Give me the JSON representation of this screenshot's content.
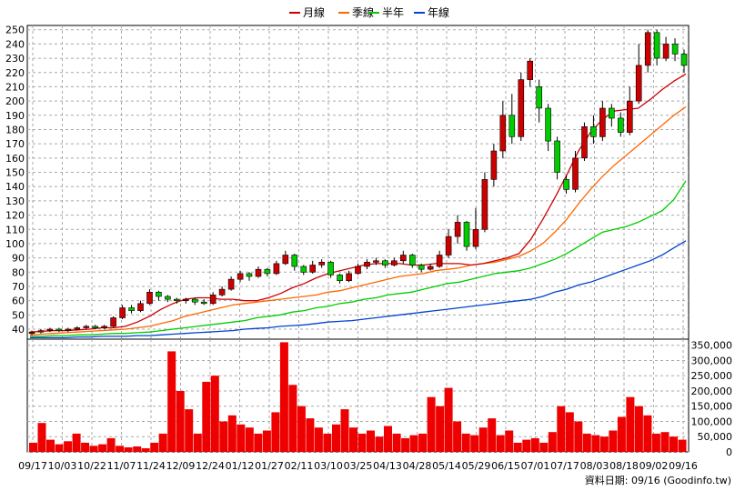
{
  "legend": [
    {
      "label": "月線",
      "color": "#cc0000"
    },
    {
      "label": "季線",
      "color": "#ff6600"
    },
    {
      "label": "半年",
      "color": "#00cc00"
    },
    {
      "label": "年線",
      "color": "#0044cc"
    }
  ],
  "footer": "資料日期: 09/16 (Goodinfo.tw)",
  "chart_data": [
    {
      "type": "candlestick",
      "title": "",
      "x_tick_labels": [
        "09/17",
        "10/03",
        "10/22",
        "11/07",
        "11/24",
        "12/09",
        "12/24",
        "01/12",
        "01/27",
        "02/11",
        "03/10",
        "03/25",
        "04/13",
        "04/28",
        "05/14",
        "05/29",
        "06/15",
        "07/01",
        "07/17",
        "08/03",
        "08/18",
        "09/02",
        "09/16"
      ],
      "y_ticks": [
        40,
        50,
        60,
        70,
        80,
        90,
        100,
        110,
        120,
        130,
        140,
        150,
        160,
        170,
        180,
        190,
        200,
        210,
        220,
        230,
        240,
        250
      ],
      "ylim": [
        33,
        253
      ],
      "grid": true,
      "legend_position": "top-center",
      "up_color": "#cc0000",
      "down_color": "#00cc00",
      "series": [
        {
          "name": "月線",
          "color": "#cc0000",
          "values": [
            38,
            38.5,
            39,
            39,
            39.5,
            40,
            41,
            41,
            42,
            45,
            49,
            54,
            58,
            61,
            62,
            62,
            61,
            61,
            60,
            60,
            62,
            65,
            69,
            72,
            76,
            79,
            81,
            83,
            85,
            86,
            86,
            86,
            85,
            85,
            86,
            86,
            86,
            85,
            86,
            88,
            90,
            93,
            103,
            117,
            132,
            148,
            165,
            178,
            187,
            193,
            194,
            195,
            201,
            208,
            214,
            219
          ]
        },
        {
          "name": "季線",
          "color": "#ff6600",
          "values": [
            36,
            36.5,
            37,
            37.5,
            38,
            38.5,
            39,
            39.5,
            40,
            41,
            42,
            44,
            46,
            49,
            51,
            53,
            55,
            57,
            58,
            59,
            60,
            61,
            62,
            63,
            64,
            66,
            67,
            69,
            71,
            73,
            75,
            77,
            78,
            79,
            81,
            82,
            83,
            85,
            86,
            87,
            89,
            91,
            95,
            100,
            108,
            117,
            128,
            138,
            147,
            155,
            162,
            169,
            176,
            183,
            190,
            196
          ]
        },
        {
          "name": "半年",
          "color": "#00cc00",
          "values": [
            35,
            35,
            35.5,
            35.5,
            36,
            36,
            36.5,
            37,
            37,
            37.5,
            38,
            39,
            40,
            41,
            42,
            43,
            44,
            45,
            46,
            48,
            49,
            50,
            52,
            53,
            55,
            56,
            58,
            59,
            61,
            62,
            64,
            65,
            66,
            68,
            70,
            72,
            73,
            75,
            77,
            79,
            80,
            81,
            83,
            86,
            89,
            93,
            98,
            103,
            108,
            110,
            112,
            115,
            119,
            123,
            131,
            144
          ]
        },
        {
          "name": "年線",
          "color": "#0044cc",
          "values": [
            34,
            34,
            34,
            34,
            34.5,
            34.5,
            35,
            35,
            35,
            35.5,
            35.5,
            36,
            36.5,
            37,
            37.5,
            38,
            38.5,
            39,
            40,
            40.5,
            41,
            42,
            42.5,
            43,
            44,
            45,
            45.5,
            46,
            47,
            48,
            49,
            50,
            51,
            52,
            53,
            54,
            55,
            56,
            57,
            58,
            59,
            60,
            61,
            63,
            66,
            68,
            71,
            73,
            76,
            79,
            82,
            85,
            88,
            92,
            97,
            102
          ]
        }
      ],
      "candles": [
        {
          "o": 37,
          "c": 38,
          "h": 39,
          "l": 36
        },
        {
          "o": 38,
          "c": 39,
          "h": 40,
          "l": 37
        },
        {
          "o": 39,
          "c": 40,
          "h": 41,
          "l": 38
        },
        {
          "o": 40,
          "c": 39,
          "h": 41,
          "l": 38
        },
        {
          "o": 39,
          "c": 40,
          "h": 41,
          "l": 38
        },
        {
          "o": 40,
          "c": 41,
          "h": 42,
          "l": 39
        },
        {
          "o": 41,
          "c": 42,
          "h": 43,
          "l": 40
        },
        {
          "o": 42,
          "c": 41,
          "h": 43,
          "l": 40
        },
        {
          "o": 41,
          "c": 42,
          "h": 43,
          "l": 40
        },
        {
          "o": 42,
          "c": 48,
          "h": 49,
          "l": 41
        },
        {
          "o": 48,
          "c": 55,
          "h": 57,
          "l": 47
        },
        {
          "o": 55,
          "c": 53,
          "h": 57,
          "l": 51
        },
        {
          "o": 53,
          "c": 58,
          "h": 60,
          "l": 52
        },
        {
          "o": 58,
          "c": 66,
          "h": 68,
          "l": 57
        },
        {
          "o": 66,
          "c": 63,
          "h": 67,
          "l": 60
        },
        {
          "o": 63,
          "c": 61,
          "h": 64,
          "l": 59
        },
        {
          "o": 61,
          "c": 60,
          "h": 62,
          "l": 58
        },
        {
          "o": 60,
          "c": 61,
          "h": 62,
          "l": 58
        },
        {
          "o": 61,
          "c": 59,
          "h": 62,
          "l": 57
        },
        {
          "o": 59,
          "c": 58,
          "h": 61,
          "l": 57
        },
        {
          "o": 58,
          "c": 64,
          "h": 66,
          "l": 57
        },
        {
          "o": 64,
          "c": 68,
          "h": 70,
          "l": 63
        },
        {
          "o": 68,
          "c": 75,
          "h": 77,
          "l": 67
        },
        {
          "o": 75,
          "c": 79,
          "h": 81,
          "l": 73
        },
        {
          "o": 79,
          "c": 77,
          "h": 80,
          "l": 74
        },
        {
          "o": 77,
          "c": 82,
          "h": 84,
          "l": 76
        },
        {
          "o": 82,
          "c": 79,
          "h": 83,
          "l": 77
        },
        {
          "o": 79,
          "c": 86,
          "h": 88,
          "l": 78
        },
        {
          "o": 86,
          "c": 92,
          "h": 95,
          "l": 85
        },
        {
          "o": 92,
          "c": 84,
          "h": 93,
          "l": 81
        },
        {
          "o": 84,
          "c": 80,
          "h": 85,
          "l": 78
        },
        {
          "o": 80,
          "c": 85,
          "h": 88,
          "l": 79
        },
        {
          "o": 85,
          "c": 87,
          "h": 89,
          "l": 83
        },
        {
          "o": 87,
          "c": 78,
          "h": 88,
          "l": 76
        },
        {
          "o": 78,
          "c": 74,
          "h": 79,
          "l": 72
        },
        {
          "o": 74,
          "c": 79,
          "h": 81,
          "l": 73
        },
        {
          "o": 79,
          "c": 84,
          "h": 86,
          "l": 78
        },
        {
          "o": 84,
          "c": 87,
          "h": 89,
          "l": 82
        },
        {
          "o": 87,
          "c": 88,
          "h": 90,
          "l": 85
        },
        {
          "o": 88,
          "c": 85,
          "h": 89,
          "l": 83
        },
        {
          "o": 85,
          "c": 88,
          "h": 90,
          "l": 84
        },
        {
          "o": 88,
          "c": 92,
          "h": 95,
          "l": 86
        },
        {
          "o": 92,
          "c": 85,
          "h": 93,
          "l": 83
        },
        {
          "o": 85,
          "c": 82,
          "h": 86,
          "l": 80
        },
        {
          "o": 82,
          "c": 84,
          "h": 86,
          "l": 81
        },
        {
          "o": 84,
          "c": 92,
          "h": 95,
          "l": 83
        },
        {
          "o": 92,
          "c": 105,
          "h": 110,
          "l": 90
        },
        {
          "o": 105,
          "c": 115,
          "h": 120,
          "l": 100
        },
        {
          "o": 115,
          "c": 98,
          "h": 116,
          "l": 95
        },
        {
          "o": 98,
          "c": 110,
          "h": 125,
          "l": 96
        },
        {
          "o": 110,
          "c": 145,
          "h": 150,
          "l": 108
        },
        {
          "o": 145,
          "c": 165,
          "h": 170,
          "l": 140
        },
        {
          "o": 165,
          "c": 190,
          "h": 200,
          "l": 160
        },
        {
          "o": 190,
          "c": 175,
          "h": 205,
          "l": 170
        },
        {
          "o": 175,
          "c": 215,
          "h": 220,
          "l": 172
        },
        {
          "o": 215,
          "c": 228,
          "h": 230,
          "l": 210
        },
        {
          "o": 210,
          "c": 195,
          "h": 215,
          "l": 185
        },
        {
          "o": 195,
          "c": 172,
          "h": 198,
          "l": 165
        },
        {
          "o": 172,
          "c": 150,
          "h": 175,
          "l": 145
        },
        {
          "o": 145,
          "c": 138,
          "h": 148,
          "l": 135
        },
        {
          "o": 138,
          "c": 160,
          "h": 165,
          "l": 136
        },
        {
          "o": 160,
          "c": 182,
          "h": 185,
          "l": 158
        },
        {
          "o": 182,
          "c": 175,
          "h": 190,
          "l": 170
        },
        {
          "o": 175,
          "c": 195,
          "h": 200,
          "l": 172
        },
        {
          "o": 195,
          "c": 188,
          "h": 198,
          "l": 182
        },
        {
          "o": 188,
          "c": 178,
          "h": 192,
          "l": 175
        },
        {
          "o": 178,
          "c": 200,
          "h": 210,
          "l": 176
        },
        {
          "o": 200,
          "c": 225,
          "h": 240,
          "l": 198
        },
        {
          "o": 225,
          "c": 248,
          "h": 250,
          "l": 220
        },
        {
          "o": 248,
          "c": 230,
          "h": 250,
          "l": 225
        },
        {
          "o": 230,
          "c": 240,
          "h": 245,
          "l": 228
        },
        {
          "o": 240,
          "c": 233,
          "h": 244,
          "l": 228
        },
        {
          "o": 233,
          "c": 225,
          "h": 236,
          "l": 220
        }
      ]
    },
    {
      "type": "bar",
      "title": "",
      "y_ticks": [
        0,
        50000,
        100000,
        150000,
        200000,
        250000,
        300000,
        350000
      ],
      "y_tick_labels": [
        "0",
        "50,000",
        "100,000",
        "150,000",
        "200,000",
        "250,000",
        "300,000",
        "350,000"
      ],
      "ylim": [
        0,
        370000
      ],
      "color": "#ee0000",
      "values": [
        30000,
        95000,
        40000,
        25000,
        35000,
        60000,
        30000,
        20000,
        25000,
        45000,
        20000,
        15000,
        18000,
        12000,
        30000,
        60000,
        330000,
        200000,
        140000,
        60000,
        230000,
        250000,
        100000,
        120000,
        90000,
        80000,
        60000,
        70000,
        130000,
        360000,
        220000,
        150000,
        110000,
        80000,
        60000,
        90000,
        140000,
        80000,
        60000,
        70000,
        50000,
        85000,
        60000,
        45000,
        55000,
        60000,
        180000,
        150000,
        210000,
        100000,
        60000,
        55000,
        80000,
        110000,
        55000,
        70000,
        30000,
        40000,
        45000,
        30000,
        65000,
        150000,
        130000,
        100000,
        60000,
        55000,
        50000,
        70000,
        115000,
        180000,
        150000,
        120000,
        60000,
        65000,
        50000,
        40000
      ]
    }
  ]
}
